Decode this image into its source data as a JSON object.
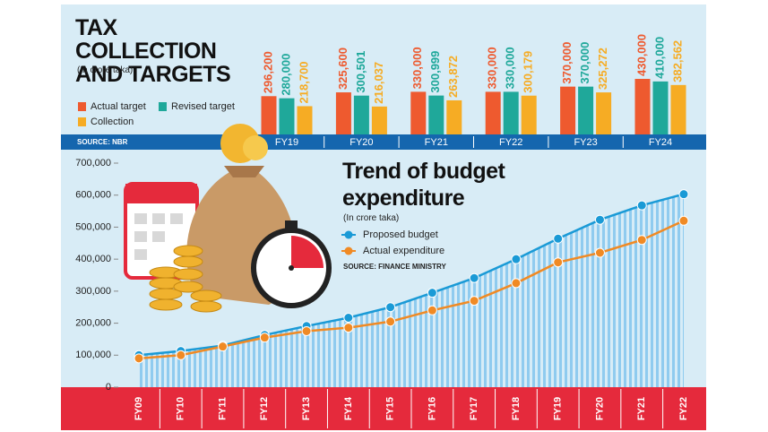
{
  "chart_data": [
    {
      "type": "bar",
      "title": "TAX COLLECTION AND TARGETS",
      "subtitle": "(In crore taka)",
      "source": "SOURCE: NBR",
      "categories": [
        "FY19",
        "FY20",
        "FY21",
        "FY22",
        "FY23",
        "FY24"
      ],
      "series": [
        {
          "name": "Actual target",
          "color": "#ee5a2f",
          "values": [
            296200,
            325600,
            330000,
            330000,
            370000,
            430000
          ],
          "value_labels": [
            "296,200",
            "325,600",
            "330,000",
            "330,000",
            "370,000",
            "430,000"
          ]
        },
        {
          "name": "Revised target",
          "color": "#1fa89a",
          "values": [
            280000,
            300501,
            300999,
            330000,
            370000,
            410000
          ],
          "value_labels": [
            "280,000",
            "300,501",
            "300,999",
            "330,000",
            "370,000",
            "410,000"
          ]
        },
        {
          "name": "Collection",
          "color": "#f6ac24",
          "values": [
            218700,
            216037,
            263872,
            300179,
            325272,
            382562
          ],
          "value_labels": [
            "218,700",
            "216,037",
            "263,872",
            "300,179",
            "325,272",
            "382,562"
          ]
        }
      ]
    },
    {
      "type": "line",
      "title": "Trend of budget expenditure",
      "subtitle": "(In crore taka)",
      "source": "SOURCE: FINANCE MINISTRY",
      "categories": [
        "FY09",
        "FY10",
        "FY11",
        "FY12",
        "FY13",
        "FY14",
        "FY15",
        "FY16",
        "FY17",
        "FY18",
        "FY19",
        "FY20",
        "FY21",
        "FY22"
      ],
      "series": [
        {
          "name": "Proposed budget",
          "color": "#1a9ad6",
          "values": [
            100000,
            113000,
            130000,
            163000,
            191000,
            217000,
            250000,
            295000,
            341000,
            400000,
            464000,
            523000,
            568000,
            603000
          ]
        },
        {
          "name": "Actual expenditure",
          "color": "#f08a24",
          "values": [
            90000,
            100000,
            127000,
            155000,
            175000,
            186000,
            205000,
            240000,
            270000,
            325000,
            390000,
            420000,
            460000,
            520000
          ]
        }
      ],
      "ylim": [
        0,
        700000
      ],
      "yticks": [
        {
          "value": 0,
          "label": "0"
        },
        {
          "value": 100000,
          "label": "100,000"
        },
        {
          "value": 200000,
          "label": "200,000"
        },
        {
          "value": 300000,
          "label": "300,000"
        },
        {
          "value": 400000,
          "label": "400,000"
        },
        {
          "value": 500000,
          "label": "500,000"
        },
        {
          "value": 600000,
          "label": "600,000"
        },
        {
          "value": 700000,
          "label": "700,000"
        }
      ]
    }
  ]
}
